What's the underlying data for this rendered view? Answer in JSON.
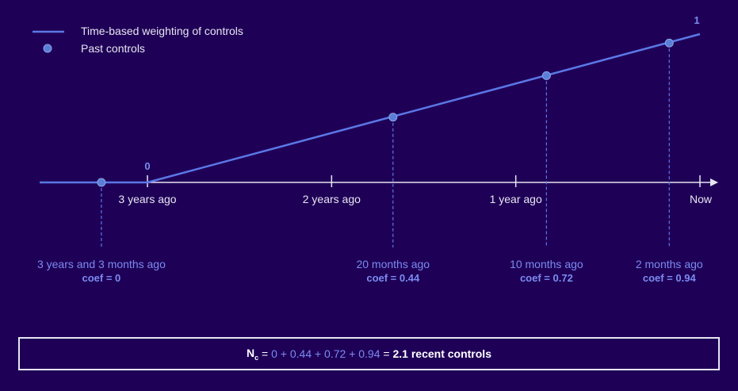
{
  "legend": {
    "line_label": "Time-based weighting of controls",
    "point_label": "Past controls"
  },
  "axis": {
    "ticks": [
      "3 years ago",
      "2 years ago",
      "1 year ago",
      "Now"
    ],
    "start_value": "0",
    "end_value": "1"
  },
  "controls": [
    {
      "when": "3 years and 3 months ago",
      "coef": "coef = 0",
      "months_ago": 39,
      "weight": 0
    },
    {
      "when": "20 months ago",
      "coef": "coef = 0.44",
      "months_ago": 20,
      "weight": 0.44
    },
    {
      "when": "10 months ago",
      "coef": "coef = 0.72",
      "months_ago": 10,
      "weight": 0.72
    },
    {
      "when": "2 months ago",
      "coef": "coef = 0.94",
      "months_ago": 2,
      "weight": 0.94
    }
  ],
  "formula": {
    "n_symbol": "N",
    "n_subscript": "c",
    "equals": "=",
    "terms": "0 + 0.44 + 0.72 + 0.94",
    "result": "2.1 recent controls"
  },
  "colors": {
    "background": "#1f0057",
    "line": "#5b78e6",
    "point": "#5b7fd6",
    "accent_text": "#7a8cf0",
    "axis": "#e6e6f0"
  }
}
